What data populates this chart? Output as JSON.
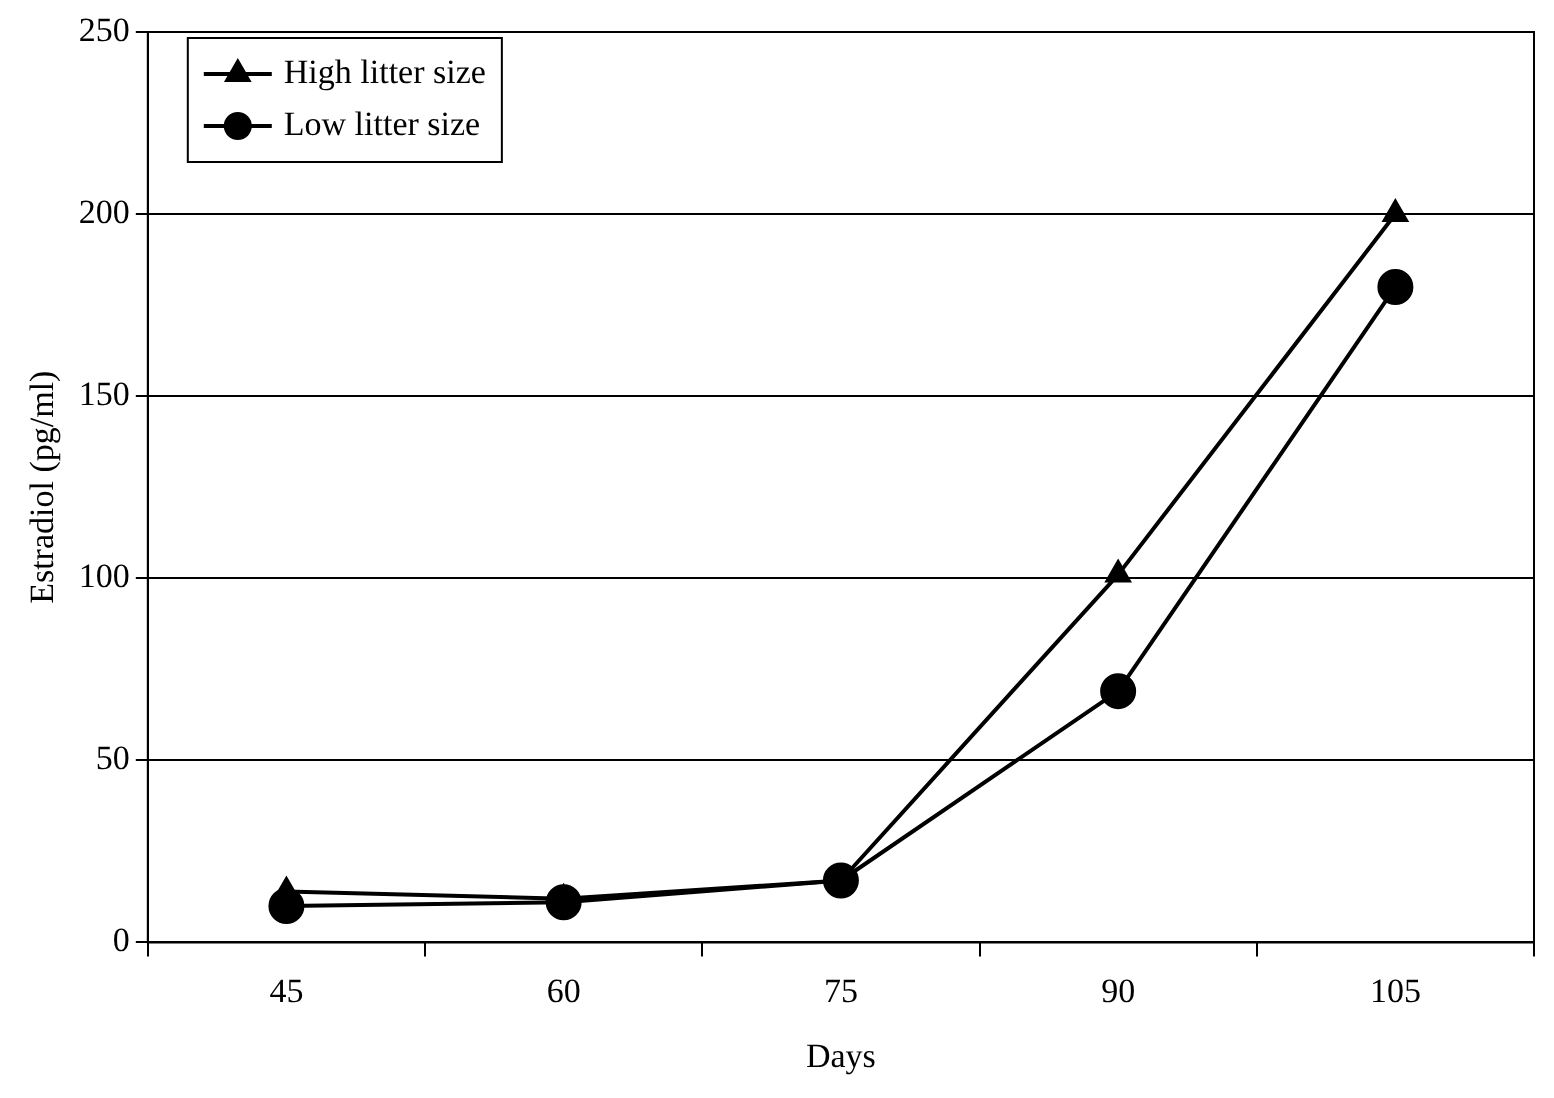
{
  "chart_data": {
    "type": "line",
    "xlabel": "Days",
    "ylabel": "Estradiol (pg/ml)",
    "categories": [
      "45",
      "60",
      "75",
      "90",
      "105"
    ],
    "series": [
      {
        "name": "High litter size",
        "color": "#000000",
        "marker": "triangle",
        "values": [
          14,
          12,
          17,
          101,
          200
        ]
      },
      {
        "name": "Low litter size",
        "color": "#000000",
        "marker": "circle",
        "values": [
          10,
          11,
          17,
          69,
          180
        ]
      }
    ],
    "ylim": [
      0,
      250
    ],
    "yticks": [
      0,
      50,
      100,
      150,
      200,
      250
    ],
    "grid": "y",
    "legend": "top left",
    "line_style": "solid"
  }
}
